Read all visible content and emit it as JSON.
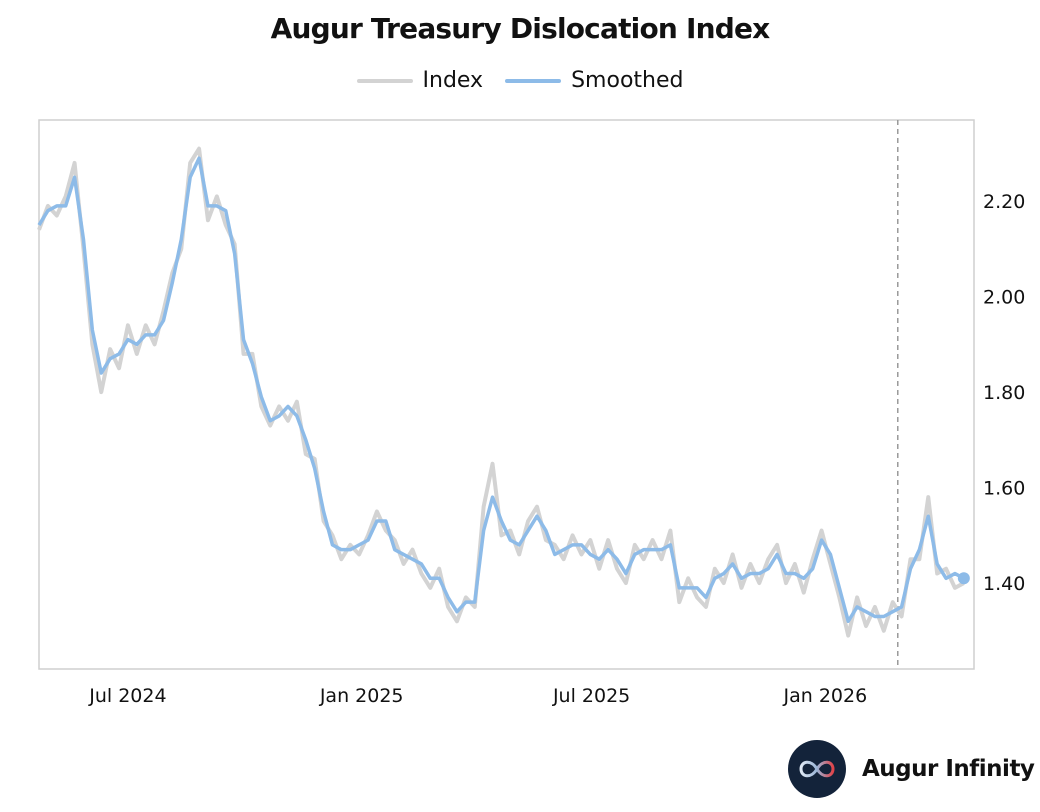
{
  "brand": {
    "name": "Augur Infinity"
  },
  "chart_data": {
    "type": "line",
    "title": "Augur Treasury Dislocation Index",
    "xlabel": "",
    "ylabel": "",
    "legend_position": "top-center",
    "grid": false,
    "y_axis_side": "right",
    "x_start": "2024-04-22",
    "x_frequency": "weekly",
    "xlim": [
      "2024-04-22",
      "2026-04-28"
    ],
    "ylim": [
      1.22,
      2.37
    ],
    "x_ticks": [
      {
        "date": "2024-07-01",
        "label": "Jul 2024"
      },
      {
        "date": "2025-01-01",
        "label": "Jan 2025"
      },
      {
        "date": "2025-07-01",
        "label": "Jul 2025"
      },
      {
        "date": "2026-01-01",
        "label": "Jan 2026"
      }
    ],
    "y_ticks": [
      {
        "value": 1.4,
        "label": "1.40"
      },
      {
        "value": 1.6,
        "label": "1.60"
      },
      {
        "value": 1.8,
        "label": "1.80"
      },
      {
        "value": 2.0,
        "label": "2.00"
      },
      {
        "value": 2.2,
        "label": "2.20"
      }
    ],
    "vertical_line": {
      "date": "2026-02-27",
      "style": "dashed",
      "color": "#999999"
    },
    "series": [
      {
        "name": "Index",
        "color": "#d3d3d3",
        "values": [
          2.14,
          2.19,
          2.17,
          2.21,
          2.28,
          2.1,
          1.9,
          1.8,
          1.89,
          1.85,
          1.94,
          1.88,
          1.94,
          1.9,
          1.97,
          2.05,
          2.1,
          2.28,
          2.31,
          2.16,
          2.21,
          2.15,
          2.11,
          1.88,
          1.88,
          1.77,
          1.73,
          1.77,
          1.74,
          1.78,
          1.67,
          1.66,
          1.53,
          1.5,
          1.45,
          1.48,
          1.46,
          1.5,
          1.55,
          1.51,
          1.49,
          1.44,
          1.47,
          1.42,
          1.39,
          1.43,
          1.35,
          1.32,
          1.37,
          1.35,
          1.56,
          1.65,
          1.5,
          1.51,
          1.46,
          1.53,
          1.56,
          1.49,
          1.48,
          1.45,
          1.5,
          1.46,
          1.49,
          1.43,
          1.49,
          1.43,
          1.4,
          1.48,
          1.45,
          1.49,
          1.45,
          1.51,
          1.36,
          1.41,
          1.37,
          1.35,
          1.43,
          1.4,
          1.46,
          1.39,
          1.44,
          1.4,
          1.45,
          1.48,
          1.4,
          1.44,
          1.38,
          1.45,
          1.51,
          1.44,
          1.37,
          1.29,
          1.37,
          1.31,
          1.35,
          1.3,
          1.36,
          1.33,
          1.45,
          1.45,
          1.58,
          1.42,
          1.43,
          1.39,
          1.4
        ]
      },
      {
        "name": "Smoothed",
        "color": "#8dbbe8",
        "values": [
          2.15,
          2.18,
          2.19,
          2.19,
          2.25,
          2.12,
          1.93,
          1.84,
          1.87,
          1.88,
          1.91,
          1.9,
          1.92,
          1.92,
          1.95,
          2.03,
          2.12,
          2.25,
          2.29,
          2.19,
          2.19,
          2.18,
          2.09,
          1.91,
          1.86,
          1.79,
          1.74,
          1.75,
          1.77,
          1.75,
          1.7,
          1.64,
          1.55,
          1.48,
          1.47,
          1.47,
          1.48,
          1.49,
          1.53,
          1.53,
          1.47,
          1.46,
          1.45,
          1.44,
          1.41,
          1.41,
          1.37,
          1.34,
          1.36,
          1.36,
          1.51,
          1.58,
          1.53,
          1.49,
          1.48,
          1.51,
          1.54,
          1.51,
          1.46,
          1.47,
          1.48,
          1.48,
          1.46,
          1.45,
          1.47,
          1.45,
          1.42,
          1.46,
          1.47,
          1.47,
          1.47,
          1.48,
          1.39,
          1.39,
          1.39,
          1.37,
          1.41,
          1.42,
          1.44,
          1.41,
          1.42,
          1.42,
          1.43,
          1.46,
          1.42,
          1.42,
          1.41,
          1.43,
          1.49,
          1.46,
          1.39,
          1.32,
          1.35,
          1.34,
          1.33,
          1.33,
          1.34,
          1.35,
          1.43,
          1.47,
          1.54,
          1.44,
          1.41,
          1.42,
          1.41
        ]
      }
    ]
  }
}
